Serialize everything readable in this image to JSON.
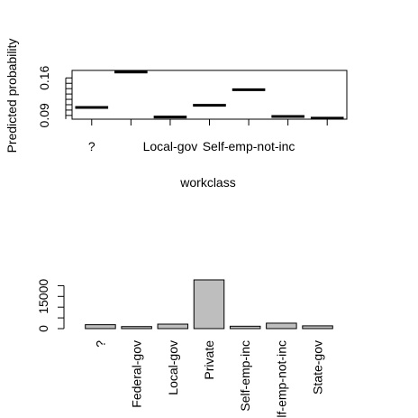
{
  "chart_data": [
    {
      "type": "line",
      "ylabel": "Predicted probability",
      "xlabel": "workclass",
      "categories": [
        "?",
        "Federal-gov",
        "Local-gov",
        "Private",
        "Self-emp-inc",
        "Self-emp-not-inc",
        "State-gov"
      ],
      "shown_tick_labels": [
        "?",
        "",
        "Local-gov",
        "",
        "Self-emp-not-inc",
        "",
        ""
      ],
      "values": [
        0.105,
        0.171,
        0.087,
        0.109,
        0.138,
        0.088,
        0.085
      ],
      "ylim": [
        0.083,
        0.174
      ],
      "yticks": [
        0.09,
        0.16
      ],
      "ytick_labels": [
        "0.09",
        "0.16"
      ],
      "grid": false
    },
    {
      "type": "bar",
      "categories": [
        "?",
        "Federal-gov",
        "Local-gov",
        "Private",
        "Self-emp-inc",
        "Self-emp-not-inc",
        "State-gov"
      ],
      "tick_labels": [
        "?",
        "Federal-gov",
        "Local-gov",
        "Private",
        "Self-emp-inc",
        "Self-emp-not-inc",
        "State-gov"
      ],
      "values": [
        1836,
        960,
        2093,
        22696,
        1116,
        2541,
        1298
      ],
      "ylim": [
        0,
        22696
      ],
      "yticks": [
        0,
        15000
      ],
      "ytick_labels": [
        "0",
        "15000"
      ],
      "bar_color": "#bebebe",
      "grid": false
    }
  ]
}
